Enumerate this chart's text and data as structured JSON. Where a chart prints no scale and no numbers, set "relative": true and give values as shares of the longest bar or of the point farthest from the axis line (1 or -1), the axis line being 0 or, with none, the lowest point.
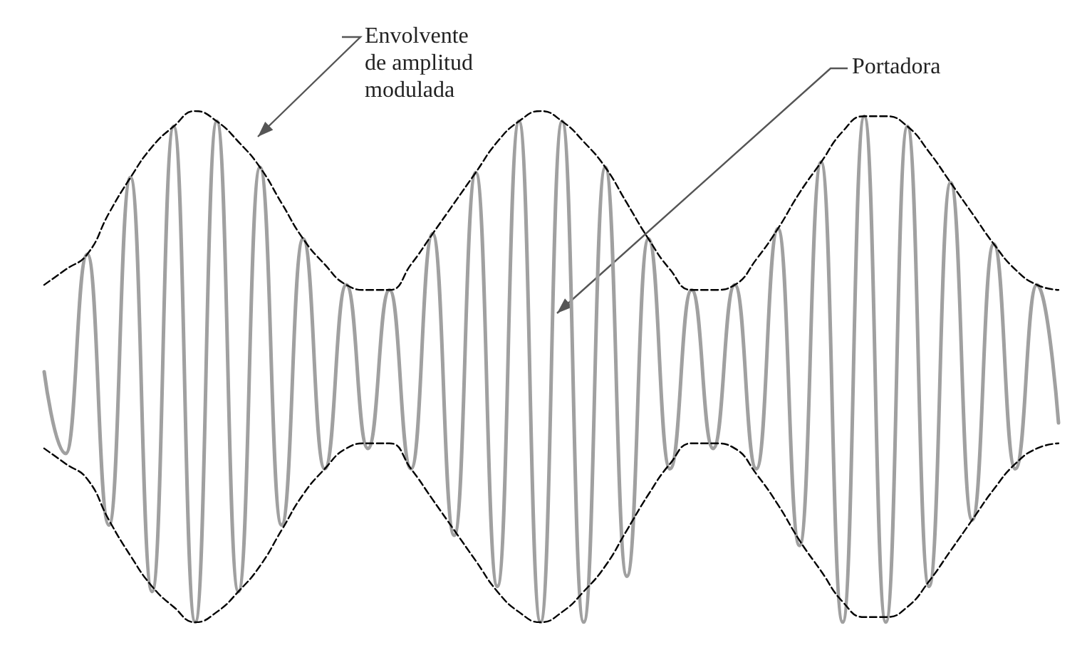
{
  "chart_data": {
    "type": "line",
    "relative": true,
    "grid": false,
    "marker": "none",
    "categories": [
      null,
      null,
      null,
      null,
      null,
      null,
      null,
      null,
      null,
      null,
      null,
      null,
      null,
      null,
      null,
      null,
      null,
      null,
      null,
      null,
      null,
      null,
      null,
      null,
      null,
      null,
      null,
      null,
      null,
      null,
      null,
      null,
      null,
      null,
      null,
      null,
      null,
      null,
      null,
      null,
      null,
      null,
      null,
      null,
      null,
      null,
      null,
      null
    ],
    "series": [
      {
        "color": "#a0a0a0",
        "line_style": "solid",
        "values": [
          0.49,
          0.33,
          0.72,
          0.19,
          0.87,
          0.06,
          0.97,
          0,
          0.98,
          0.06,
          0.89,
          0.19,
          0.75,
          0.3,
          0.66,
          0.34,
          0.65,
          0.3,
          0.76,
          0.17,
          0.88,
          0.07,
          0.98,
          0,
          0.98,
          0,
          0.89,
          0.09,
          0.75,
          0.3,
          0.65,
          0.34,
          0.66,
          0.3,
          0.77,
          0.15,
          0.9,
          0,
          0.99,
          0,
          0.97,
          0.07,
          0.86,
          0.2,
          0.74,
          0.3,
          0.66,
          0.39
        ]
      },
      {
        "color": "#000000",
        "line_style": "dashed",
        "values": [
          0.66,
          0.69,
          0.72,
          0.8,
          0.87,
          0.93,
          0.97,
          1.0,
          0.98,
          0.94,
          0.89,
          0.82,
          0.75,
          0.7,
          0.66,
          0.65,
          0.65,
          0.7,
          0.76,
          0.82,
          0.88,
          0.94,
          0.98,
          1.0,
          0.98,
          0.94,
          0.89,
          0.82,
          0.75,
          0.69,
          0.65,
          0.65,
          0.66,
          0.71,
          0.77,
          0.84,
          0.9,
          0.96,
          0.99,
          0.99,
          0.97,
          0.92,
          0.86,
          0.8,
          0.74,
          0.69,
          0.66,
          0.65
        ]
      },
      {
        "color": "#000000",
        "line_style": "dashed",
        "values": [
          0.34,
          0.31,
          0.28,
          0.2,
          0.13,
          0.07,
          0.03,
          0,
          0.02,
          0.06,
          0.11,
          0.18,
          0.25,
          0.3,
          0.34,
          0.35,
          0.35,
          0.3,
          0.24,
          0.18,
          0.12,
          0.06,
          0.02,
          0,
          0.02,
          0.06,
          0.11,
          0.18,
          0.25,
          0.31,
          0.35,
          0.35,
          0.34,
          0.29,
          0.23,
          0.16,
          0.1,
          0.04,
          0.01,
          0.01,
          0.03,
          0.08,
          0.14,
          0.2,
          0.26,
          0.31,
          0.34,
          0.35
        ]
      }
    ],
    "annotations": [
      "Envolvente de amplitud modulada",
      "Portadora"
    ]
  }
}
